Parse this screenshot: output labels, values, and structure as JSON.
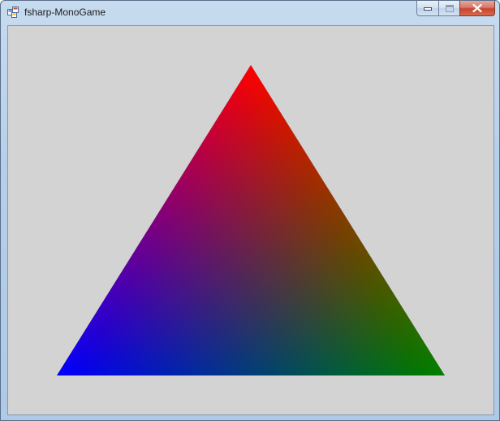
{
  "window": {
    "title": "fsharp-MonoGame",
    "icon": "winforms-app-icon"
  },
  "title_buttons": {
    "minimize": "minimize-icon",
    "maximize": "maximize-icon",
    "close": "close-icon"
  },
  "canvas": {
    "background_color": "#d3d3d3",
    "shape": "triangle",
    "vertex_colors": {
      "top": "#ff0000",
      "bottom_left": "#0000ff",
      "bottom_right": "#008000"
    }
  }
}
